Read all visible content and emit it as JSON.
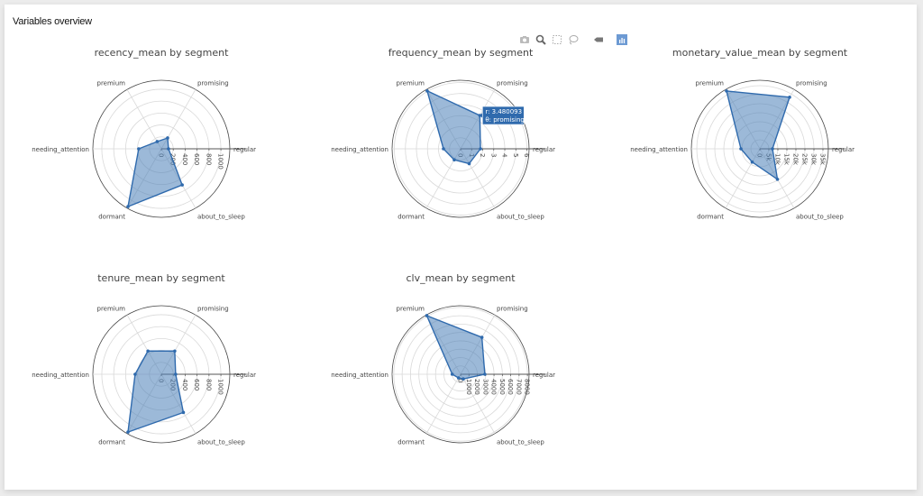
{
  "page": {
    "title": "Variables overview"
  },
  "modebar": {
    "buttons": [
      {
        "name": "camera-icon",
        "label": "Download plot as png"
      },
      {
        "name": "zoom-icon",
        "label": "Zoom"
      },
      {
        "name": "box-select-icon",
        "label": "Box Select"
      },
      {
        "name": "lasso-icon",
        "label": "Lasso Select"
      },
      {
        "name": "plotly-logo-icon",
        "label": "Produced with Plotly"
      },
      {
        "name": "chart-studio-icon",
        "label": "Edit in Chart Studio"
      }
    ]
  },
  "colors": {
    "line": "#2f6aad",
    "fill": "#4a7fb8",
    "fill_opacity": 0.55,
    "grid": "#d9d9d9",
    "outer": "#444444",
    "hover_bg": "#2f6aad"
  },
  "chart_data": [
    {
      "type": "radar",
      "title": "recency_mean by segment",
      "categories": [
        "regular",
        "promising",
        "premium",
        "needing_attention",
        "dormant",
        "about_to_sleep"
      ],
      "values": [
        120,
        210,
        140,
        380,
        1120,
        700
      ],
      "radial_range": [
        0,
        1150
      ],
      "radial_ticks": [
        0,
        200,
        400,
        600,
        800,
        1000
      ],
      "radial_tick_labels": [
        "0",
        "200",
        "400",
        "600",
        "800",
        "1000"
      ]
    },
    {
      "type": "radar",
      "title": "frequency_mean by segment",
      "categories": [
        "regular",
        "promising",
        "premium",
        "needing_attention",
        "dormant",
        "about_to_sleep"
      ],
      "values": [
        1.8,
        3.480093,
        6.05,
        1.55,
        1.15,
        1.55
      ],
      "radial_range": [
        0,
        6.2
      ],
      "radial_ticks": [
        0,
        1,
        2,
        3,
        4,
        5,
        6
      ],
      "radial_tick_labels": [
        "0",
        "1",
        "2",
        "3",
        "4",
        "5",
        "6"
      ],
      "hover": {
        "r": "r: 3.480093",
        "theta": "θ: promising",
        "index": 1
      }
    },
    {
      "type": "radar",
      "title": "monetary_value_mean by segment",
      "categories": [
        "regular",
        "promising",
        "premium",
        "needing_attention",
        "dormant",
        "about_to_sleep"
      ],
      "values": [
        7000,
        33000,
        37000,
        10500,
        8500,
        19500
      ],
      "radial_range": [
        0,
        38000
      ],
      "radial_ticks": [
        0,
        5000,
        10000,
        15000,
        20000,
        25000,
        30000,
        35000
      ],
      "radial_tick_labels": [
        "0",
        "5k",
        "10k",
        "15k",
        "20k",
        "25k",
        "30k",
        "35k"
      ]
    },
    {
      "type": "radar",
      "title": "tenure_mean by segment",
      "categories": [
        "regular",
        "promising",
        "premium",
        "needing_attention",
        "dormant",
        "about_to_sleep"
      ],
      "values": [
        240,
        450,
        450,
        440,
        1120,
        740
      ],
      "radial_range": [
        0,
        1150
      ],
      "radial_ticks": [
        0,
        200,
        400,
        600,
        800,
        1000
      ],
      "radial_tick_labels": [
        "0",
        "200",
        "400",
        "600",
        "800",
        "1000"
      ]
    },
    {
      "type": "radar",
      "title": "clv_mean by segment",
      "categories": [
        "regular",
        "promising",
        "premium",
        "needing_attention",
        "dormant",
        "about_to_sleep"
      ],
      "values": [
        2900,
        5100,
        8100,
        1000,
        500,
        650
      ],
      "radial_range": [
        0,
        8200
      ],
      "radial_ticks": [
        0,
        1000,
        2000,
        3000,
        4000,
        5000,
        6000,
        7000,
        8000
      ],
      "radial_tick_labels": [
        "0",
        "1000",
        "2000",
        "3000",
        "4000",
        "5000",
        "6000",
        "7000",
        "8000"
      ]
    }
  ]
}
